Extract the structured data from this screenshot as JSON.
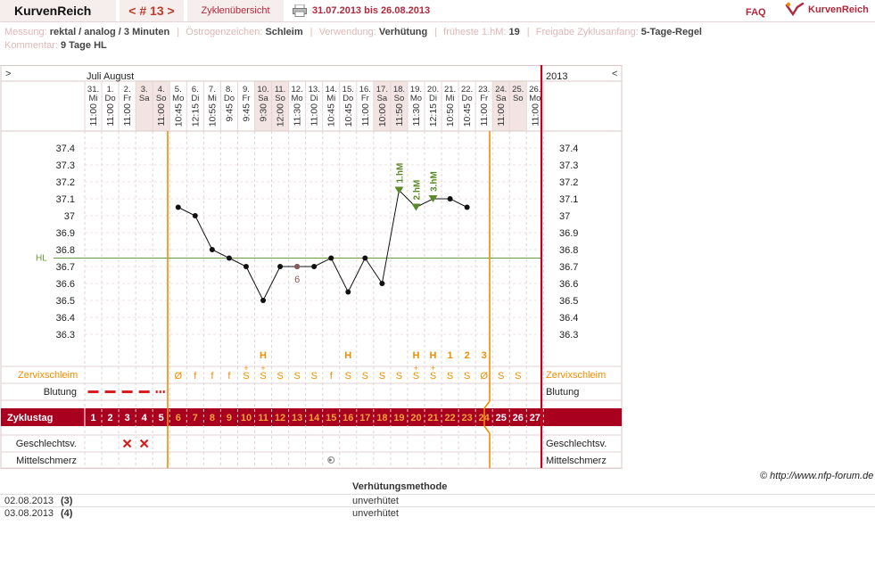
{
  "header": {
    "brand": "KurvenReich",
    "cycle_nav": "< # 13 >",
    "overview_tab": "Zyklenübersicht",
    "date_range": "31.07.2013 bis 26.08.2013",
    "faq": "FAQ",
    "logo_text": "KurvenReich"
  },
  "meta": {
    "messung_label": "Messung:",
    "messung_value": "rektal / analog / 3 Minuten",
    "oestrogen_label": "Östrogenzeichen:",
    "oestrogen_value": "Schleim",
    "verwendung_label": "Verwendung:",
    "verwendung_value": "Verhütung",
    "frueheste_label": "früheste 1.hM:",
    "frueheste_value": "19",
    "freigabe_label": "Freigabe Zyklusanfang:",
    "freigabe_value": "5-Tage-Regel",
    "kommentar_label": "Kommentar:",
    "kommentar_value": "9 Tage HL"
  },
  "chart_data": {
    "type": "line",
    "title": "",
    "nav_left": ">",
    "nav_right": "<",
    "months": "Juli August",
    "year": "2013",
    "dates": [
      "31.",
      "1.",
      "2.",
      "3.",
      "4.",
      "5.",
      "6.",
      "7.",
      "8.",
      "9.",
      "10.",
      "11.",
      "12.",
      "13.",
      "14.",
      "15.",
      "16.",
      "17.",
      "18.",
      "19.",
      "20.",
      "21.",
      "22.",
      "23.",
      "24.",
      "25.",
      "26."
    ],
    "weekdays": [
      "Mi",
      "Do",
      "Fr",
      "Sa",
      "So",
      "Mo",
      "Di",
      "Mi",
      "Do",
      "Fr",
      "Sa",
      "So",
      "Mo",
      "Di",
      "Mi",
      "Do",
      "Fr",
      "Sa",
      "So",
      "Mo",
      "Di",
      "Mi",
      "Do",
      "Fr",
      "Sa",
      "So",
      "Mo"
    ],
    "times": [
      "11:00",
      "11:00",
      "11:00",
      "",
      "11:00",
      "10:45",
      "12:15",
      "10:55",
      "9:45",
      "9:45",
      "9:30",
      "12:00",
      "11:30",
      "11:00",
      "10:45",
      "10:45",
      "11:00",
      "10:00",
      "11:50",
      "11:30",
      "12:15",
      "10:50",
      "10:45",
      "11:00",
      "11:00",
      "",
      "11:00"
    ],
    "cycle_days": [
      1,
      2,
      3,
      4,
      5,
      6,
      7,
      8,
      9,
      10,
      11,
      12,
      13,
      14,
      15,
      16,
      17,
      18,
      19,
      20,
      21,
      22,
      23,
      24,
      25,
      26,
      27
    ],
    "temperatures": [
      null,
      null,
      null,
      null,
      null,
      37.05,
      37.0,
      36.8,
      36.75,
      36.7,
      36.5,
      36.7,
      36.7,
      36.7,
      36.75,
      36.55,
      36.75,
      36.6,
      37.15,
      37.05,
      37.1,
      37.1,
      37.05,
      null,
      null,
      null,
      null
    ],
    "y_ticks": [
      "37.4",
      "37.3",
      "37.2",
      "37.1",
      "37",
      "36.9",
      "36.8",
      "36.7",
      "36.6",
      "36.5",
      "36.4",
      "36.3"
    ],
    "ylim": [
      36.2,
      37.45
    ],
    "cover_line": 36.75,
    "cover_line_label": "HL",
    "temp_markers": [
      {
        "day": 19,
        "label": "1.hM"
      },
      {
        "day": 20,
        "label": "2.hM"
      },
      {
        "day": 21,
        "label": "3.hM"
      }
    ],
    "excluded_note": {
      "day": 13,
      "label": "6"
    },
    "cervix_top": [
      "",
      "",
      "",
      "",
      "",
      "",
      "",
      "",
      "",
      "",
      "H",
      "",
      "",
      "",
      "",
      "H",
      "",
      "",
      "",
      "H",
      "H",
      "1",
      "2",
      "3",
      "",
      "",
      ""
    ],
    "cervix": [
      "",
      "",
      "",
      "",
      "",
      "Ø",
      "f",
      "f",
      "f",
      "S",
      "S",
      "S",
      "S",
      "S",
      "f",
      "S",
      "S",
      "S",
      "S",
      "S",
      "S",
      "S",
      "S",
      "Ø",
      "S",
      "S",
      ""
    ],
    "cervix_plus": [
      false,
      false,
      false,
      false,
      false,
      false,
      false,
      false,
      false,
      true,
      true,
      false,
      false,
      false,
      false,
      false,
      false,
      false,
      false,
      true,
      true,
      false,
      false,
      false,
      false,
      false,
      false
    ],
    "bleeding": [
      "heavy",
      "heavy",
      "heavy",
      "heavy",
      "light",
      "",
      "",
      "",
      "",
      "",
      "",
      "",
      "",
      "",
      "",
      "",
      "",
      "",
      "",
      "",
      "",
      "",
      "",
      "",
      "",
      "",
      ""
    ],
    "intercourse": [
      "",
      "",
      "x",
      "x",
      "",
      "",
      "",
      "",
      "",
      "",
      "",
      "",
      "",
      "",
      "",
      "",
      "",
      "",
      "",
      "",
      "",
      "",
      "",
      "",
      "",
      "",
      ""
    ],
    "mittelschmerz": [
      "",
      "",
      "",
      "",
      "",
      "",
      "",
      "",
      "",
      "",
      "",
      "",
      "",
      "",
      "1",
      "",
      "",
      "",
      "",
      "",
      "",
      "",
      "",
      "",
      "",
      "",
      ""
    ],
    "row_labels": {
      "cervix": "Zervixschleim",
      "bleeding": "Blutung",
      "cycle": "Zyklustag",
      "sex": "Geschlechtsv.",
      "mittelschmerz": "Mittelschmerz"
    },
    "legend": "none",
    "grid": true,
    "colors": {
      "accent": "#a8001e",
      "orange": "#f28c00",
      "cover": "#6a9a3a",
      "marker": "#5c8a2a",
      "bleeding": "#d81e1e"
    }
  },
  "copyright": "© http://www.nfp-forum.de",
  "methods": {
    "header": "Verhütungsmethode",
    "rows": [
      {
        "date": "02.08.2013",
        "num": "(3)",
        "method": "unverhütet"
      },
      {
        "date": "03.08.2013",
        "num": "(4)",
        "method": "unverhütet"
      }
    ]
  }
}
